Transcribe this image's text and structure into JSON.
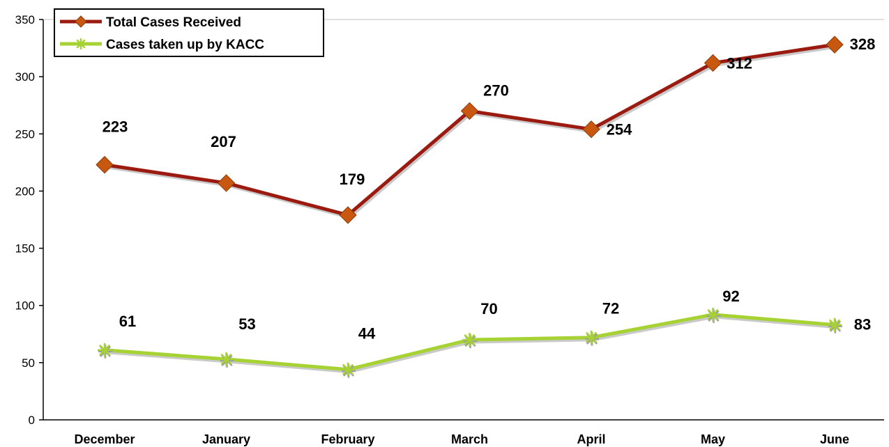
{
  "chart_data": {
    "type": "line",
    "title": "",
    "xlabel": "",
    "ylabel": "",
    "categories": [
      "December",
      "January",
      "February",
      "March",
      "April",
      "May",
      "June"
    ],
    "ylim": [
      0,
      350
    ],
    "yticks": [
      0,
      50,
      100,
      150,
      200,
      250,
      300,
      350
    ],
    "grid": false,
    "legend_position": "top-left",
    "series": [
      {
        "name": "Total Cases Received",
        "values": [
          223,
          207,
          179,
          270,
          254,
          312,
          328
        ],
        "color": "#9B1B10",
        "marker": "diamond",
        "marker_color": "#C8580F"
      },
      {
        "name": "Cases taken up by KACC",
        "values": [
          61,
          53,
          44,
          70,
          72,
          92,
          83
        ],
        "color": "#A6D233",
        "marker": "star",
        "marker_color": "#A6D233"
      }
    ]
  }
}
